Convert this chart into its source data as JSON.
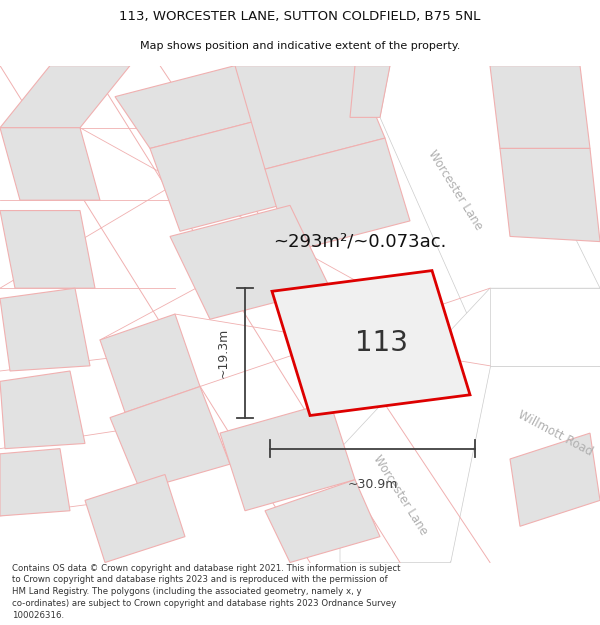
{
  "title_line1": "113, WORCESTER LANE, SUTTON COLDFIELD, B75 5NL",
  "title_line2": "Map shows position and indicative extent of the property.",
  "area_label": "~293m²/~0.073ac.",
  "property_number": "113",
  "dim_width": "~30.9m",
  "dim_height": "~19.3m",
  "road_label_top": "Worcester Lane",
  "road_label_bot": "Worcester Lane",
  "road_label_right": "Willmott Road",
  "footer_text": "Contains OS data © Crown copyright and database right 2021. This information is subject\nto Crown copyright and database rights 2023 and is reproduced with the permission of\nHM Land Registry. The polygons (including the associated geometry, namely x, y\nco-ordinates) are subject to Crown copyright and database rights 2023 Ordnance Survey\n100026316.",
  "map_bg": "#f5f5f5",
  "property_fill": "#f0f0f0",
  "property_edge": "#dd0000",
  "block_fill": "#e2e2e2",
  "block_edge": "#f0b0b0",
  "road_fill": "#ffffff",
  "road_edge": "#dddddd",
  "road_label_color": "#b0b0b0",
  "dim_color": "#404040",
  "area_color": "#111111",
  "title_color": "#111111",
  "footer_color": "#333333"
}
